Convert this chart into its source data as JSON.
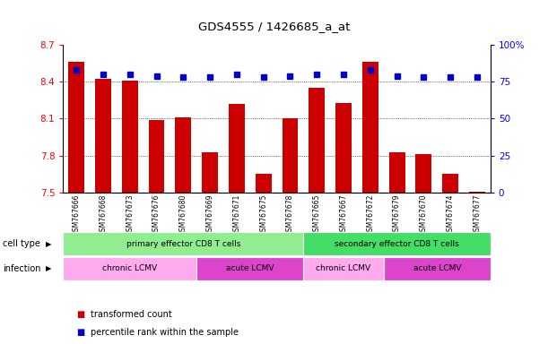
{
  "title": "GDS4555 / 1426685_a_at",
  "samples": [
    "GSM767666",
    "GSM767668",
    "GSM767673",
    "GSM767676",
    "GSM767680",
    "GSM767669",
    "GSM767671",
    "GSM767675",
    "GSM767678",
    "GSM767665",
    "GSM767667",
    "GSM767672",
    "GSM767679",
    "GSM767670",
    "GSM767674",
    "GSM767677"
  ],
  "transformed_count": [
    8.56,
    8.42,
    8.41,
    8.09,
    8.11,
    7.83,
    8.22,
    7.65,
    8.1,
    8.35,
    8.23,
    8.56,
    7.83,
    7.81,
    7.65,
    7.51
  ],
  "percentile_rank": [
    83,
    80,
    80,
    79,
    78,
    78,
    80,
    78,
    79,
    80,
    80,
    83,
    79,
    78,
    78,
    78
  ],
  "ylim_left": [
    7.5,
    8.7
  ],
  "ylim_right": [
    0,
    100
  ],
  "yticks_left": [
    7.5,
    7.8,
    8.1,
    8.4,
    8.7
  ],
  "yticks_right": [
    0,
    25,
    50,
    75,
    100
  ],
  "ytick_labels_right": [
    "0",
    "25",
    "50",
    "75",
    "100%"
  ],
  "bar_color": "#cc0000",
  "dot_color": "#0000cc",
  "cell_type_groups": [
    {
      "label": "primary effector CD8 T cells",
      "start": 0,
      "end": 9,
      "color": "#90ee90"
    },
    {
      "label": "secondary effector CD8 T cells",
      "start": 9,
      "end": 16,
      "color": "#44dd66"
    }
  ],
  "infection_groups": [
    {
      "label": "chronic LCMV",
      "start": 0,
      "end": 5,
      "color": "#ffaaee"
    },
    {
      "label": "acute LCMV",
      "start": 5,
      "end": 9,
      "color": "#dd44cc"
    },
    {
      "label": "chronic LCMV",
      "start": 9,
      "end": 12,
      "color": "#ffaaee"
    },
    {
      "label": "acute LCMV",
      "start": 12,
      "end": 16,
      "color": "#dd44cc"
    }
  ],
  "legend_items": [
    {
      "color": "#cc0000",
      "label": "transformed count"
    },
    {
      "color": "#0000cc",
      "label": "percentile rank within the sample"
    }
  ],
  "cell_type_label": "cell type",
  "infection_label": "infection",
  "bar_baseline": 7.5,
  "n_samples": 16
}
